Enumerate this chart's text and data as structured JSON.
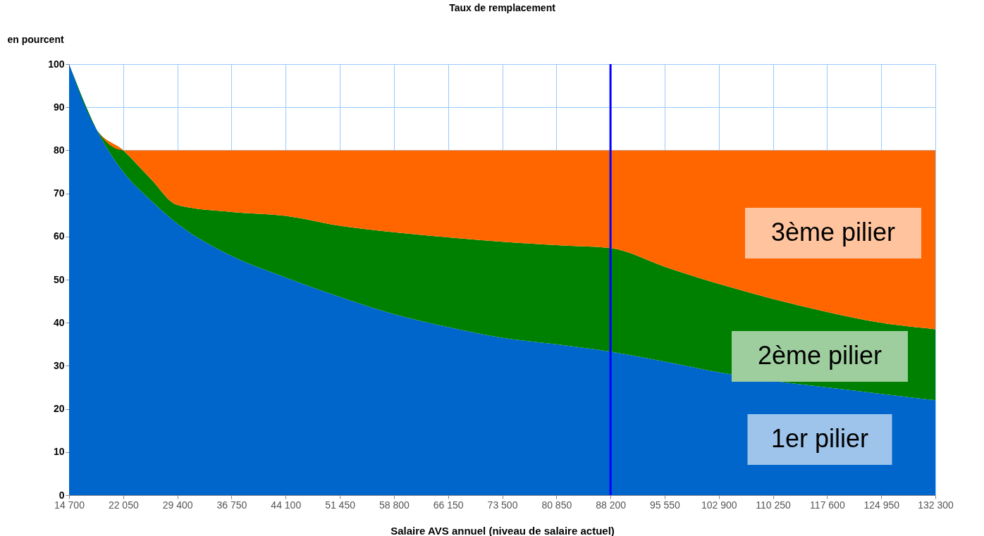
{
  "chart_data": {
    "type": "area",
    "stacked": true,
    "title": "Taux de remplacement",
    "ylabel": "en pourcent",
    "xlabel": "Salaire AVS annuel (niveau de salaire actuel)",
    "x": [
      14700,
      18375,
      22050,
      25725,
      29400,
      36750,
      44100,
      51450,
      58800,
      66150,
      73500,
      80850,
      88200,
      95550,
      102900,
      110250,
      117600,
      124950,
      132300
    ],
    "series": [
      {
        "name": "1er pilier",
        "color": "#0066cc",
        "values": [
          100,
          85,
          75,
          68.5,
          63,
          55.5,
          50.5,
          46,
          42,
          39,
          36.5,
          35,
          33.3,
          31,
          28.5,
          26.5,
          25,
          23.5,
          22
        ]
      },
      {
        "name": "2ème pilier",
        "color": "#008000",
        "values": [
          0,
          0,
          5,
          5,
          4.3,
          10.2,
          14.3,
          16.5,
          19,
          20.8,
          22.3,
          23,
          24,
          22,
          20.5,
          19,
          17.5,
          16.5,
          16.5
        ]
      },
      {
        "name": "3ème pilier",
        "color": "#ff6600",
        "values": [
          0,
          0,
          0,
          6.5,
          12.7,
          14.3,
          15.2,
          17.5,
          19,
          20.2,
          21.2,
          22,
          22.7,
          27,
          31,
          34.5,
          37.5,
          40,
          41.5
        ]
      }
    ],
    "xlim": [
      14700,
      132300
    ],
    "xticks": [
      {
        "value": 14700,
        "label": "14 700"
      },
      {
        "value": 22050,
        "label": "22 050"
      },
      {
        "value": 29400,
        "label": "29 400"
      },
      {
        "value": 36750,
        "label": "36 750"
      },
      {
        "value": 44100,
        "label": "44 100"
      },
      {
        "value": 51450,
        "label": "51 450"
      },
      {
        "value": 58800,
        "label": "58 800"
      },
      {
        "value": 66150,
        "label": "66 150"
      },
      {
        "value": 73500,
        "label": "73 500"
      },
      {
        "value": 80850,
        "label": "80 850"
      },
      {
        "value": 88200,
        "label": "88 200"
      },
      {
        "value": 95550,
        "label": "95 550"
      },
      {
        "value": 102900,
        "label": "102 900"
      },
      {
        "value": 110250,
        "label": "110 250"
      },
      {
        "value": 117600,
        "label": "117 600"
      },
      {
        "value": 124950,
        "label": "124 950"
      },
      {
        "value": 132300,
        "label": "132 300"
      }
    ],
    "ylim": [
      0,
      100
    ],
    "yticks": [
      0,
      10,
      20,
      30,
      40,
      50,
      60,
      70,
      80,
      90,
      100
    ],
    "ref_lines": [
      {
        "axis": "x",
        "value": 88200,
        "color": "#0000ff"
      }
    ],
    "grid": true,
    "legend": false
  }
}
